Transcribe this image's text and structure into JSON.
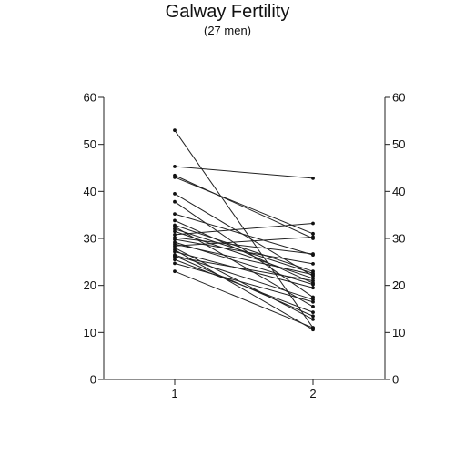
{
  "chart_data": {
    "type": "line",
    "title": "Galway Fertility",
    "subtitle": "(27 men)",
    "xlabel": "",
    "ylabel": "",
    "categories": [
      "1",
      "2"
    ],
    "ylim": [
      0,
      60
    ],
    "yticks": [
      "0",
      "10",
      "20",
      "30",
      "40",
      "50",
      "60"
    ],
    "right_axis_ticks": [
      "0",
      "10",
      "20",
      "30",
      "40",
      "50",
      "60"
    ],
    "grid": false,
    "legend": "none",
    "colors": {
      "line": "#222222",
      "marker": "#111111",
      "axis": "#222222",
      "background": "#ffffff"
    },
    "series": [
      {
        "values": [
          53.0,
          11.0
        ]
      },
      {
        "values": [
          45.3,
          42.8
        ]
      },
      {
        "values": [
          43.4,
          30.0
        ]
      },
      {
        "values": [
          43.0,
          31.0
        ]
      },
      {
        "values": [
          39.5,
          22.0
        ]
      },
      {
        "values": [
          37.8,
          17.5
        ]
      },
      {
        "values": [
          35.2,
          26.5
        ]
      },
      {
        "values": [
          33.8,
          20.5
        ]
      },
      {
        "values": [
          32.8,
          23.0
        ]
      },
      {
        "values": [
          32.5,
          15.5
        ]
      },
      {
        "values": [
          32.0,
          22.6
        ]
      },
      {
        "values": [
          31.5,
          21.5
        ]
      },
      {
        "values": [
          30.8,
          33.2
        ]
      },
      {
        "values": [
          30.2,
          26.7
        ]
      },
      {
        "values": [
          29.8,
          24.6
        ]
      },
      {
        "values": [
          29.2,
          20.2
        ]
      },
      {
        "values": [
          28.8,
          22.3
        ]
      },
      {
        "values": [
          28.4,
          30.3
        ]
      },
      {
        "values": [
          28.0,
          12.8
        ]
      },
      {
        "values": [
          27.6,
          10.6
        ]
      },
      {
        "values": [
          27.2,
          19.5
        ]
      },
      {
        "values": [
          26.5,
          17.0
        ]
      },
      {
        "values": [
          26.1,
          21.0
        ]
      },
      {
        "values": [
          25.5,
          14.3
        ]
      },
      {
        "values": [
          24.7,
          16.5
        ]
      },
      {
        "values": [
          23.0,
          11.0
        ]
      },
      {
        "values": [
          26.3,
          13.5
        ]
      }
    ]
  }
}
